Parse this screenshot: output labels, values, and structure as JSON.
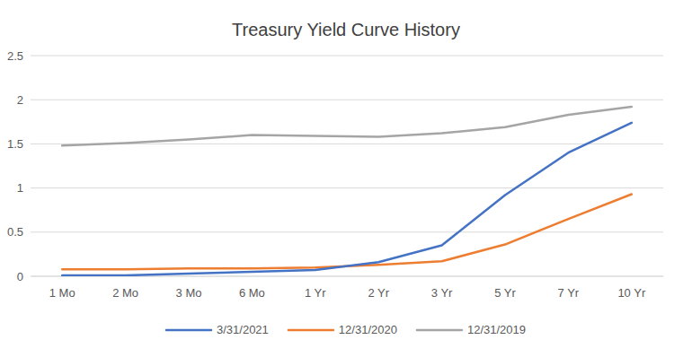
{
  "chart_data": {
    "type": "line",
    "title": "Treasury Yield Curve History",
    "categories": [
      "1 Mo",
      "2 Mo",
      "3 Mo",
      "6 Mo",
      "1 Yr",
      "2 Yr",
      "3 Yr",
      "5 Yr",
      "7 Yr",
      "10 Yr"
    ],
    "series": [
      {
        "name": "3/31/2021",
        "color": "#4472c4",
        "values": [
          0.01,
          0.01,
          0.03,
          0.05,
          0.07,
          0.16,
          0.35,
          0.92,
          1.4,
          1.74
        ]
      },
      {
        "name": "12/31/2020",
        "color": "#ed7d31",
        "values": [
          0.08,
          0.08,
          0.09,
          0.09,
          0.1,
          0.13,
          0.17,
          0.36,
          0.65,
          0.93
        ]
      },
      {
        "name": "12/31/2019",
        "color": "#a5a5a5",
        "values": [
          1.48,
          1.51,
          1.55,
          1.6,
          1.59,
          1.58,
          1.62,
          1.69,
          1.83,
          1.92
        ]
      }
    ],
    "ylim": [
      0,
      2.5
    ],
    "yticks": [
      0,
      0.5,
      1,
      1.5,
      2,
      2.5
    ],
    "grid": true,
    "legend": "bottom"
  }
}
